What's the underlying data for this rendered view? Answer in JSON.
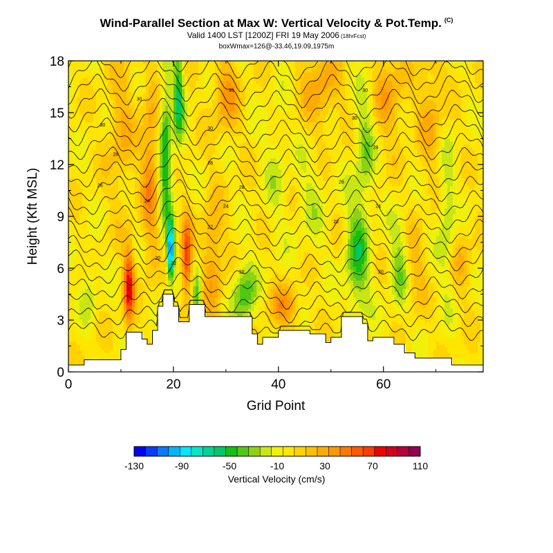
{
  "header": {
    "title": "Wind-Parallel Section at Max W: Vertical Velocity & Pot.Temp.",
    "corner_tag": "(C)",
    "valid_line": "Valid 1400 LST [1200Z] FRI 19 May 2006",
    "forecast_tag": "(18hrFcst)",
    "box_line": "boxWmax=126@-33.46,19.09,1975m"
  },
  "chart_data": {
    "type": "heatmap",
    "title": "Wind-Parallel Section at Max W: Vertical Velocity & Pot.Temp.",
    "xlabel": "Grid Point",
    "ylabel": "Height (Kft MSL)",
    "xlim": [
      0,
      79
    ],
    "ylim": [
      0,
      18
    ],
    "x_ticks": [
      0,
      20,
      40,
      60
    ],
    "y_ticks": [
      0,
      3,
      6,
      9,
      12,
      15,
      18
    ],
    "colorbar": {
      "label": "Vertical Velocity (cm/s)",
      "min": -130,
      "max": 110,
      "step": 10,
      "tick_labels": [
        "-130",
        "-90",
        "-50",
        "-10",
        "30",
        "70",
        "110"
      ],
      "tick_values": [
        -130,
        -90,
        -50,
        -10,
        30,
        70,
        110
      ],
      "colors": [
        "#0000ff",
        "#0a3cff",
        "#0a78ff",
        "#00b4ff",
        "#00e6ff",
        "#00e6c8",
        "#00d296",
        "#00c864",
        "#14be14",
        "#50c814",
        "#8cd214",
        "#c8e614",
        "#f0f00a",
        "#ffe600",
        "#ffd200",
        "#ffbe00",
        "#ffaa00",
        "#ff9600",
        "#ff7800",
        "#ff5a00",
        "#ff3c00",
        "#f00000",
        "#d2001e",
        "#b4003c",
        "#960050"
      ]
    },
    "terrain": [
      [
        0,
        0.4
      ],
      [
        3,
        0.4
      ],
      [
        3,
        0.7
      ],
      [
        10,
        0.7
      ],
      [
        10,
        1.3
      ],
      [
        11,
        1.3
      ],
      [
        11,
        2.3
      ],
      [
        14,
        2.3
      ],
      [
        14,
        1.9
      ],
      [
        15,
        1.9
      ],
      [
        15,
        1.6
      ],
      [
        16,
        1.6
      ],
      [
        16,
        2.4
      ],
      [
        17,
        2.4
      ],
      [
        17,
        3.8
      ],
      [
        18,
        3.8
      ],
      [
        18,
        4.5
      ],
      [
        20,
        4.5
      ],
      [
        20,
        3.8
      ],
      [
        21,
        3.8
      ],
      [
        21,
        2.9
      ],
      [
        23,
        2.9
      ],
      [
        23,
        3.9
      ],
      [
        26,
        3.9
      ],
      [
        26,
        3.2
      ],
      [
        35,
        3.2
      ],
      [
        35,
        2.2
      ],
      [
        36,
        2.2
      ],
      [
        36,
        1.6
      ],
      [
        37,
        1.6
      ],
      [
        37,
        2.0
      ],
      [
        40,
        2.0
      ],
      [
        40,
        2.4
      ],
      [
        46,
        2.4
      ],
      [
        46,
        2.2
      ],
      [
        49,
        2.2
      ],
      [
        49,
        1.7
      ],
      [
        50,
        1.7
      ],
      [
        50,
        2.0
      ],
      [
        52,
        2.0
      ],
      [
        52,
        3.2
      ],
      [
        56,
        3.2
      ],
      [
        56,
        2.8
      ],
      [
        57,
        2.8
      ],
      [
        57,
        1.8
      ],
      [
        58,
        1.8
      ],
      [
        58,
        2.0
      ],
      [
        62,
        2.0
      ],
      [
        62,
        1.6
      ],
      [
        64,
        1.6
      ],
      [
        64,
        1.1
      ],
      [
        66,
        1.1
      ],
      [
        66,
        0.8
      ],
      [
        73,
        0.8
      ],
      [
        73,
        0.4
      ],
      [
        79,
        0.4
      ]
    ],
    "updraft_cores": [
      {
        "x": 11.5,
        "y": 5.0,
        "w": 80,
        "sx": 1.0,
        "sy": 2.2
      },
      {
        "x": 22.5,
        "y": 6.5,
        "w": 70,
        "sx": 1.0,
        "sy": 2.4
      },
      {
        "x": 15.5,
        "y": 11.5,
        "w": 40,
        "sx": 1.6,
        "sy": 5.0
      },
      {
        "x": 27.5,
        "y": 6.5,
        "w": 35,
        "sx": 2.0,
        "sy": 3.5
      },
      {
        "x": 41,
        "y": 3.8,
        "w": 35,
        "sx": 3.0,
        "sy": 1.2
      },
      {
        "x": 30,
        "y": 16,
        "w": 35,
        "sx": 2.5,
        "sy": 2.2
      },
      {
        "x": 61,
        "y": 16,
        "w": 30,
        "sx": 3.0,
        "sy": 2.5
      },
      {
        "x": 48,
        "y": 16.5,
        "w": 30,
        "sx": 3.5,
        "sy": 2.5
      },
      {
        "x": 10,
        "y": 14,
        "w": 25,
        "sx": 2.5,
        "sy": 4.0
      },
      {
        "x": 69,
        "y": 15,
        "w": 25,
        "sx": 2.5,
        "sy": 3.5
      },
      {
        "x": 75,
        "y": 6.5,
        "w": 20,
        "sx": 2.0,
        "sy": 2.0
      },
      {
        "x": 66,
        "y": 6.0,
        "w": 20,
        "sx": 2.0,
        "sy": 2.5
      }
    ],
    "downdraft_cores": [
      {
        "x": 19.5,
        "y": 7.0,
        "w": -110,
        "sx": 0.7,
        "sy": 1.6
      },
      {
        "x": 18.5,
        "y": 12.5,
        "w": -60,
        "sx": 1.1,
        "sy": 4.0
      },
      {
        "x": 21.0,
        "y": 16.0,
        "w": -55,
        "sx": 1.0,
        "sy": 3.0
      },
      {
        "x": 24.5,
        "y": 4.5,
        "w": -45,
        "sx": 0.9,
        "sy": 1.8
      },
      {
        "x": 33.5,
        "y": 4.5,
        "w": -45,
        "sx": 2.2,
        "sy": 1.8
      },
      {
        "x": 55.0,
        "y": 6.5,
        "w": -45,
        "sx": 2.2,
        "sy": 3.5
      },
      {
        "x": 56.5,
        "y": 13.0,
        "w": -30,
        "sx": 1.8,
        "sy": 3.5
      },
      {
        "x": 63.0,
        "y": 6.0,
        "w": -30,
        "sx": 1.8,
        "sy": 2.8
      },
      {
        "x": 4.0,
        "y": 5.0,
        "w": -20,
        "sx": 1.5,
        "sy": 2.0
      },
      {
        "x": 72.0,
        "y": 9.0,
        "w": -25,
        "sx": 1.6,
        "sy": 4.5
      },
      {
        "x": 39.5,
        "y": 12.0,
        "w": -15,
        "sx": 2.0,
        "sy": 4.0
      },
      {
        "x": 46.0,
        "y": 10.0,
        "w": -15,
        "sx": 3.0,
        "sy": 3.0
      }
    ],
    "contours": {
      "count": 20,
      "labels": [
        {
          "x": 13.5,
          "y": 15.8,
          "text": "30"
        },
        {
          "x": 6.5,
          "y": 14.3,
          "text": "30"
        },
        {
          "x": 9.0,
          "y": 12.6,
          "text": "28"
        },
        {
          "x": 6.0,
          "y": 10.8,
          "text": "26"
        },
        {
          "x": 15.0,
          "y": 9.9,
          "text": "24"
        },
        {
          "x": 17.0,
          "y": 6.6,
          "text": "20"
        },
        {
          "x": 20.0,
          "y": 6.3,
          "text": "22"
        },
        {
          "x": 31.0,
          "y": 16.3,
          "text": "30"
        },
        {
          "x": 27.0,
          "y": 14.1,
          "text": "30"
        },
        {
          "x": 27.0,
          "y": 12.1,
          "text": "28"
        },
        {
          "x": 33.0,
          "y": 10.7,
          "text": "28"
        },
        {
          "x": 30.0,
          "y": 9.6,
          "text": "24"
        },
        {
          "x": 27.0,
          "y": 8.4,
          "text": "22"
        },
        {
          "x": 33.0,
          "y": 5.8,
          "text": "20"
        },
        {
          "x": 56.5,
          "y": 16.3,
          "text": "30"
        },
        {
          "x": 54.5,
          "y": 14.7,
          "text": "30"
        },
        {
          "x": 58.5,
          "y": 13.0,
          "text": "28"
        },
        {
          "x": 52.0,
          "y": 11.0,
          "text": "26"
        },
        {
          "x": 59.0,
          "y": 9.6,
          "text": "24"
        },
        {
          "x": 51.0,
          "y": 8.7,
          "text": "22"
        },
        {
          "x": 59.5,
          "y": 5.8,
          "text": "20"
        }
      ]
    }
  }
}
